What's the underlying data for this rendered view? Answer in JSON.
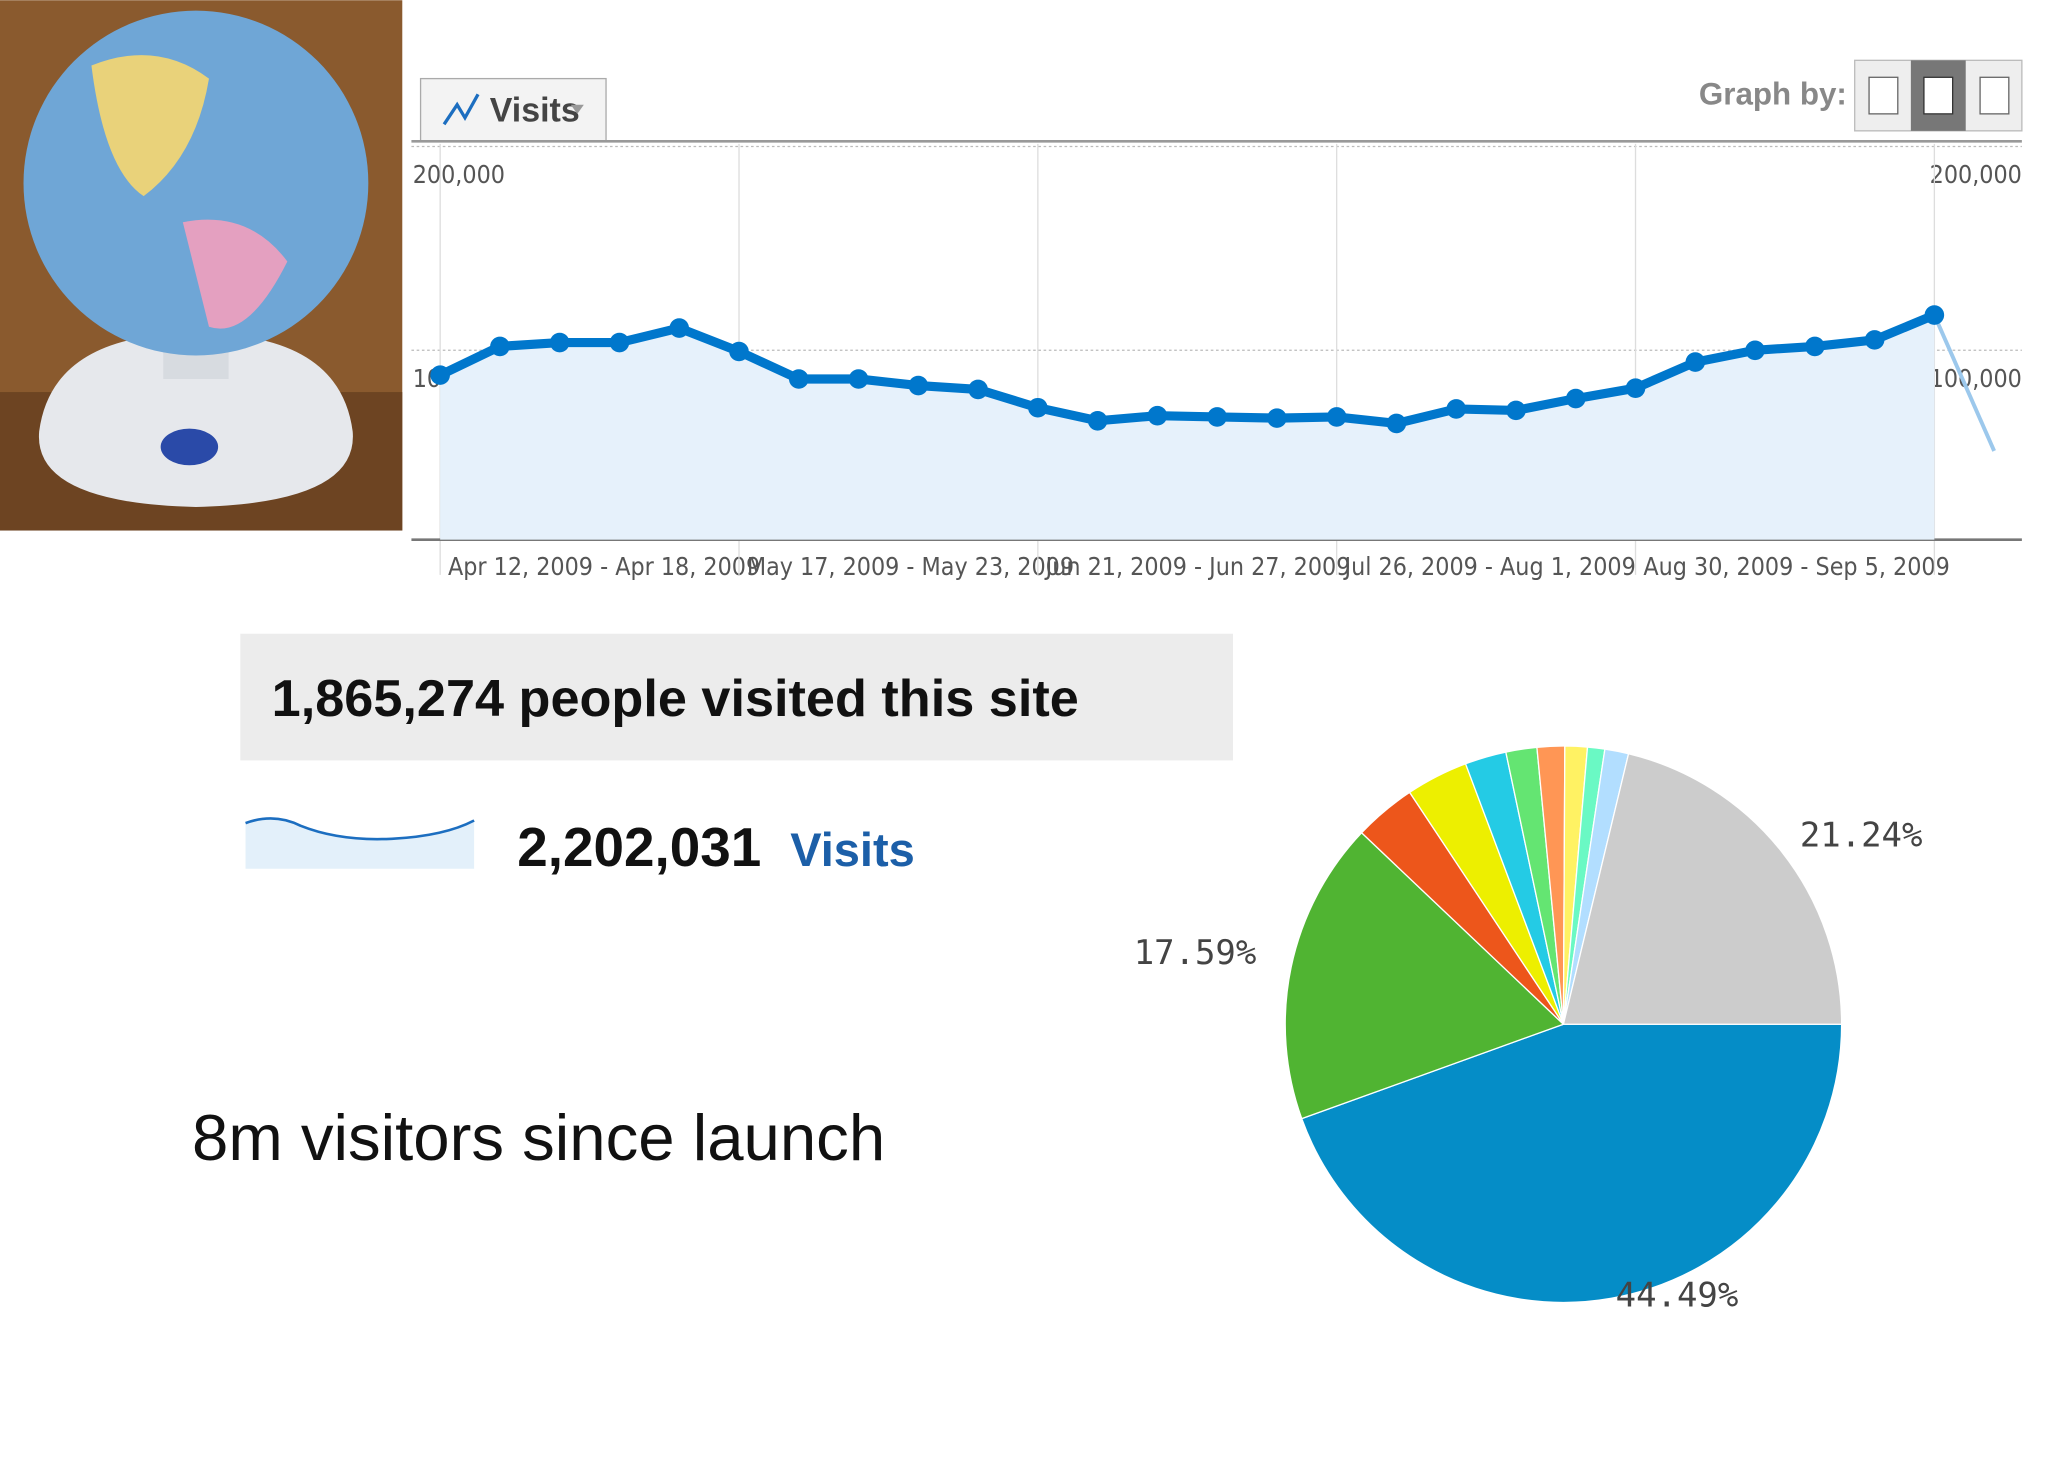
{
  "chart_data": [
    {
      "type": "line",
      "metric_button": "Visits",
      "graph_by_label": "Graph by:",
      "x": [
        "Apr 12, 2009 - Apr 18, 2009",
        null,
        null,
        null,
        null,
        "May 17, 2009 - May 23, 2009",
        null,
        null,
        null,
        null,
        "Jun 21, 2009 - Jun 27, 2009",
        null,
        null,
        null,
        null,
        "Jul 26, 2009 - Aug 1, 2009",
        null,
        null,
        null,
        null,
        "Aug 30, 2009 - Sep 5, 2009",
        null,
        null,
        null,
        null,
        null,
        null
      ],
      "series": [
        {
          "name": "Visits",
          "color": "#0077cc",
          "values": [
            87800,
            101900,
            103800,
            103800,
            110900,
            99400,
            85900,
            85900,
            82700,
            80800,
            71800,
            65400,
            67900,
            67300,
            66700,
            67300,
            64100,
            71200,
            70500,
            76300,
            81400,
            94200,
            100000,
            101900,
            105100,
            117300,
            50600
          ]
        }
      ],
      "ylim": [
        0,
        200000
      ],
      "yticks": [
        {
          "value": 100000,
          "label": "100,000"
        },
        {
          "value": 200000,
          "label": "200,000"
        }
      ],
      "grid": true
    },
    {
      "type": "pie",
      "values": [
        44.49,
        17.59,
        3.6,
        3.6,
        2.4,
        1.8,
        1.6,
        1.3,
        1.0,
        1.38,
        21.24
      ],
      "value_labels": [
        "44.49%",
        "17.59%",
        null,
        null,
        null,
        null,
        null,
        null,
        null,
        null,
        "21.24%"
      ],
      "colors": [
        "#058dc7",
        "#50b432",
        "#ed561b",
        "#edef00",
        "#24cbe5",
        "#64e572",
        "#ff9655",
        "#fff263",
        "#6af9c4",
        "#b2deff",
        "#cccccc"
      ]
    }
  ],
  "summary": {
    "headline": "1,865,274 people visited this site",
    "visits_total": "2,202,031",
    "visits_label": "Visits",
    "caption": "8m visitors since launch"
  }
}
